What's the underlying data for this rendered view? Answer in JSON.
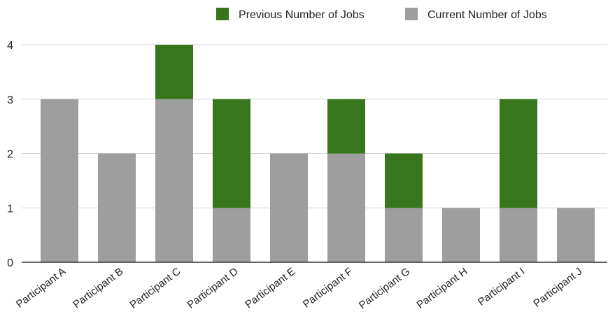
{
  "chart_data": {
    "type": "bar",
    "stacked": true,
    "title": "",
    "xlabel": "",
    "ylabel": "",
    "ylim": [
      0,
      4
    ],
    "yticks": [
      0,
      1,
      2,
      3,
      4
    ],
    "grid": true,
    "legend_position": "top",
    "categories": [
      "Participant A",
      "Participant B",
      "Participant C",
      "Participant D",
      "Participant E",
      "Participant F",
      "Participant G",
      "Participant H",
      "Participant I",
      "Participant J"
    ],
    "series": [
      {
        "name": "Current Number of Jobs",
        "color": "#9e9e9e",
        "values": [
          3,
          2,
          3,
          1,
          2,
          2,
          1,
          1,
          1,
          1
        ]
      },
      {
        "name": "Previous Number of Jobs",
        "color": "#38761d",
        "values": [
          0,
          0,
          1,
          2,
          0,
          1,
          1,
          0,
          2,
          0
        ]
      }
    ],
    "legend_order": [
      1,
      0
    ]
  }
}
